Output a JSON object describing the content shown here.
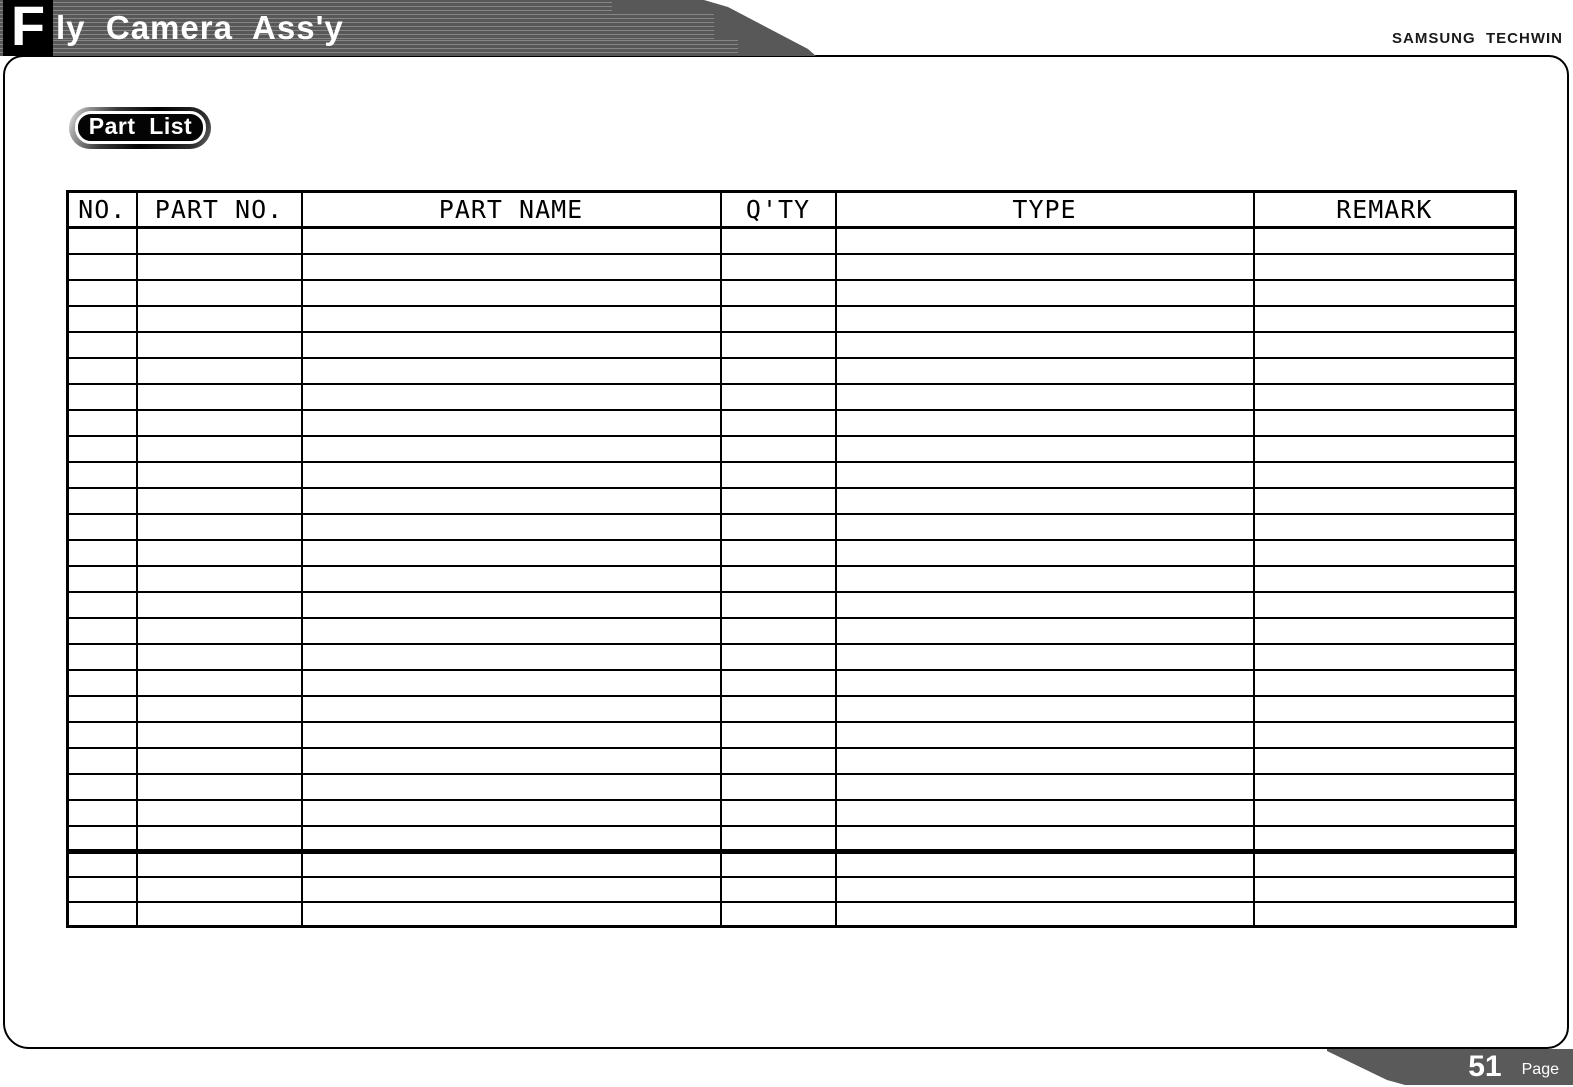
{
  "header": {
    "title_initial": "F",
    "title_rest": "ly  Camera  Ass'y",
    "brand": "SAMSUNG  TECHWIN"
  },
  "part_list_badge": {
    "label": "Part  List"
  },
  "parts_table": {
    "columns": [
      "NO.",
      "PART NO.",
      "PART NAME",
      "Q'TY",
      "TYPE",
      "REMARK"
    ],
    "empty_rows_main": 24,
    "empty_rows_after_separator": 3,
    "all_cells_empty": true
  },
  "footer": {
    "page_number": "51",
    "page_label": "Page"
  },
  "colors": {
    "banner_gray": "#585858",
    "stripe_light": "#9a9a9a",
    "table_line_black": "#000000",
    "footer_gray": "#5a5a5a",
    "text_white": "#ffffff",
    "brand_text": "#1a1a1a"
  }
}
